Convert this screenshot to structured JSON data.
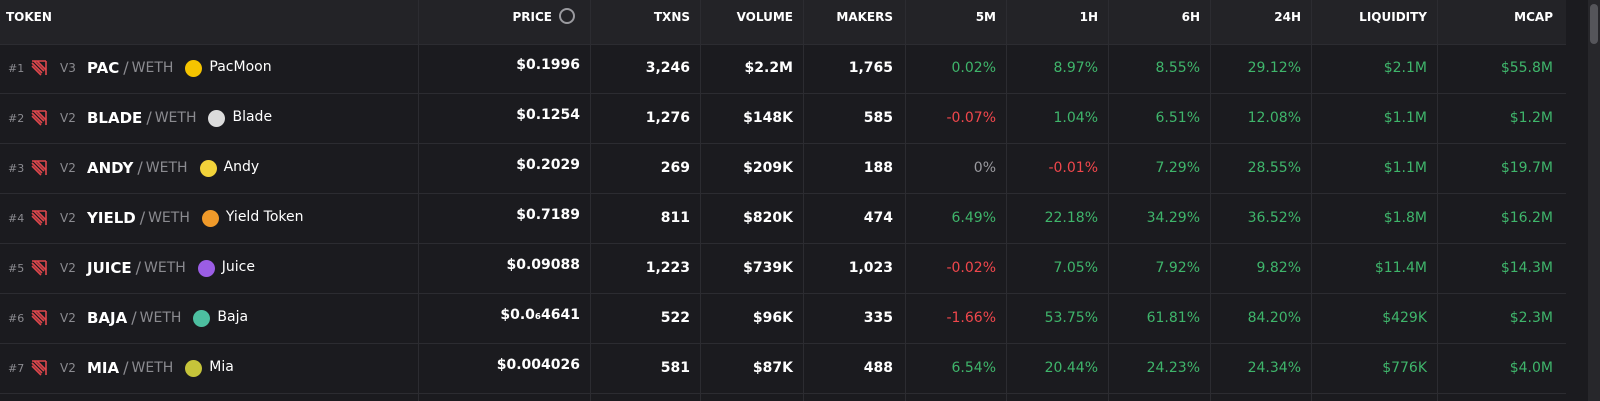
{
  "header": {
    "columns": [
      "TOKEN",
      "PRICE",
      "TXNS",
      "VOLUME",
      "MAKERS",
      "5M",
      "1H",
      "6H",
      "24H",
      "LIQUIDITY",
      "MCAP"
    ]
  },
  "separator": "/",
  "rows": [
    {
      "rank": "#1",
      "version": "V3",
      "symbol": "PAC",
      "quote": "WETH",
      "name": "PacMoon",
      "price": "$0.1996",
      "txns": "3,246",
      "volume": "$2.2M",
      "makers": "1,765",
      "m5": "0.02%",
      "h1": "8.97%",
      "h6": "8.55%",
      "h24": "29.12%",
      "liquidity": "$2.1M",
      "mcap": "$55.8M"
    },
    {
      "rank": "#2",
      "version": "V2",
      "symbol": "BLADE",
      "quote": "WETH",
      "name": "Blade",
      "price": "$0.1254",
      "txns": "1,276",
      "volume": "$148K",
      "makers": "585",
      "m5": "-0.07%",
      "h1": "1.04%",
      "h6": "6.51%",
      "h24": "12.08%",
      "liquidity": "$1.1M",
      "mcap": "$1.2M"
    },
    {
      "rank": "#3",
      "version": "V2",
      "symbol": "ANDY",
      "quote": "WETH",
      "name": "Andy",
      "price": "$0.2029",
      "txns": "269",
      "volume": "$209K",
      "makers": "188",
      "m5": "0%",
      "h1": "-0.01%",
      "h6": "7.29%",
      "h24": "28.55%",
      "liquidity": "$1.1M",
      "mcap": "$19.7M"
    },
    {
      "rank": "#4",
      "version": "V2",
      "symbol": "YIELD",
      "quote": "WETH",
      "name": "Yield Token",
      "price": "$0.7189",
      "txns": "811",
      "volume": "$820K",
      "makers": "474",
      "m5": "6.49%",
      "h1": "22.18%",
      "h6": "34.29%",
      "h24": "36.52%",
      "liquidity": "$1.8M",
      "mcap": "$16.2M"
    },
    {
      "rank": "#5",
      "version": "V2",
      "symbol": "JUICE",
      "quote": "WETH",
      "name": "Juice",
      "price": "$0.09088",
      "txns": "1,223",
      "volume": "$739K",
      "makers": "1,023",
      "m5": "-0.02%",
      "h1": "7.05%",
      "h6": "7.92%",
      "h24": "9.82%",
      "liquidity": "$11.4M",
      "mcap": "$14.3M"
    },
    {
      "rank": "#6",
      "version": "V2",
      "symbol": "BAJA",
      "quote": "WETH",
      "name": "Baja",
      "price": "$0.0₆4641",
      "txns": "522",
      "volume": "$96K",
      "makers": "335",
      "m5": "-1.66%",
      "h1": "53.75%",
      "h6": "61.81%",
      "h24": "84.20%",
      "liquidity": "$429K",
      "mcap": "$2.3M"
    },
    {
      "rank": "#7",
      "version": "V2",
      "symbol": "MIA",
      "quote": "WETH",
      "name": "Mia",
      "price": "$0.004026",
      "txns": "581",
      "volume": "$87K",
      "makers": "488",
      "m5": "6.54%",
      "h1": "20.44%",
      "h6": "24.23%",
      "h24": "24.34%",
      "liquidity": "$776K",
      "mcap": "$4.0M"
    }
  ]
}
